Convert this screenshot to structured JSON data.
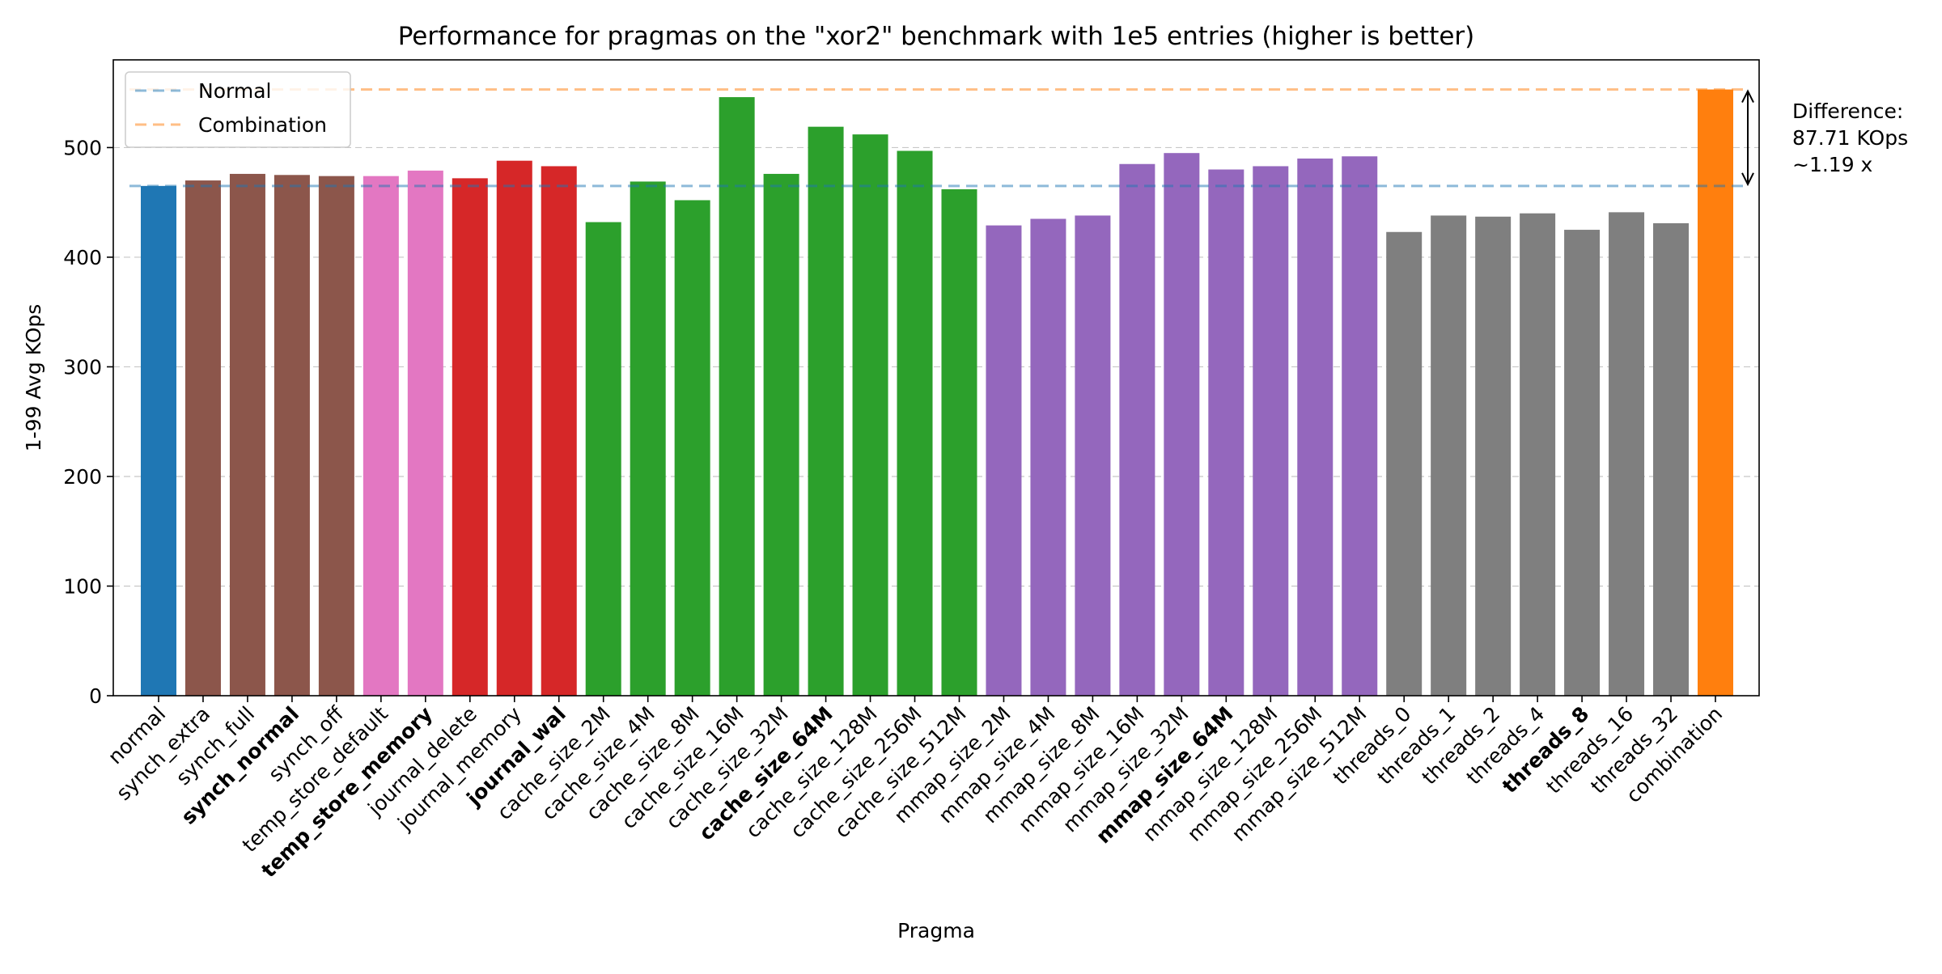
{
  "chart_data": {
    "type": "bar",
    "title": "Performance for pragmas on the \"xor2\" benchmark with 1e5 entries (higher is better)",
    "xlabel": "Pragma",
    "ylabel": "1-99 Avg KOps",
    "ylim": [
      0,
      580
    ],
    "yticks": [
      0,
      100,
      200,
      300,
      400,
      500
    ],
    "grid": "horizontal dashed",
    "categories": [
      "normal",
      "synch_extra",
      "synch_full",
      "synch_normal",
      "synch_off",
      "temp_store_default",
      "temp_store_memory",
      "journal_delete",
      "journal_memory",
      "journal_wal",
      "cache_size_2M",
      "cache_size_4M",
      "cache_size_8M",
      "cache_size_16M",
      "cache_size_32M",
      "cache_size_64M",
      "cache_size_128M",
      "cache_size_256M",
      "cache_size_512M",
      "mmap_size_2M",
      "mmap_size_4M",
      "mmap_size_8M",
      "mmap_size_16M",
      "mmap_size_32M",
      "mmap_size_64M",
      "mmap_size_128M",
      "mmap_size_256M",
      "mmap_size_512M",
      "threads_0",
      "threads_1",
      "threads_2",
      "threads_4",
      "threads_8",
      "threads_16",
      "threads_32",
      "combination"
    ],
    "values": [
      465,
      470,
      476,
      475,
      474,
      474,
      479,
      472,
      488,
      483,
      432,
      469,
      452,
      546,
      476,
      519,
      512,
      497,
      462,
      429,
      435,
      438,
      485,
      495,
      480,
      483,
      490,
      492,
      423,
      438,
      437,
      440,
      425,
      441,
      431,
      553
    ],
    "groups": [
      "normal",
      "synch",
      "synch",
      "synch",
      "synch",
      "temp_store",
      "temp_store",
      "journal",
      "journal",
      "journal",
      "cache_size",
      "cache_size",
      "cache_size",
      "cache_size",
      "cache_size",
      "cache_size",
      "cache_size",
      "cache_size",
      "cache_size",
      "mmap_size",
      "mmap_size",
      "mmap_size",
      "mmap_size",
      "mmap_size",
      "mmap_size",
      "mmap_size",
      "mmap_size",
      "mmap_size",
      "threads",
      "threads",
      "threads",
      "threads",
      "threads",
      "threads",
      "threads",
      "combination"
    ],
    "group_colors": {
      "normal": "#1f77b4",
      "synch": "#8c564b",
      "temp_store": "#e377c2",
      "journal": "#d62728",
      "cache_size": "#2ca02c",
      "mmap_size": "#9467bd",
      "threads": "#7f7f7f",
      "combination": "#ff7f0e"
    },
    "bold_labels": [
      "synch_normal",
      "temp_store_memory",
      "journal_wal",
      "cache_size_64M",
      "mmap_size_64M",
      "threads_8"
    ],
    "reference_lines": [
      {
        "name": "Normal",
        "value": 465,
        "color": "#1f77b4"
      },
      {
        "name": "Combination",
        "value": 553,
        "color": "#ff7f0e"
      }
    ],
    "legend_position": "top-left",
    "annotation": {
      "lines": [
        "Difference:",
        "87.71 KOps",
        "~1.19 x"
      ]
    }
  }
}
